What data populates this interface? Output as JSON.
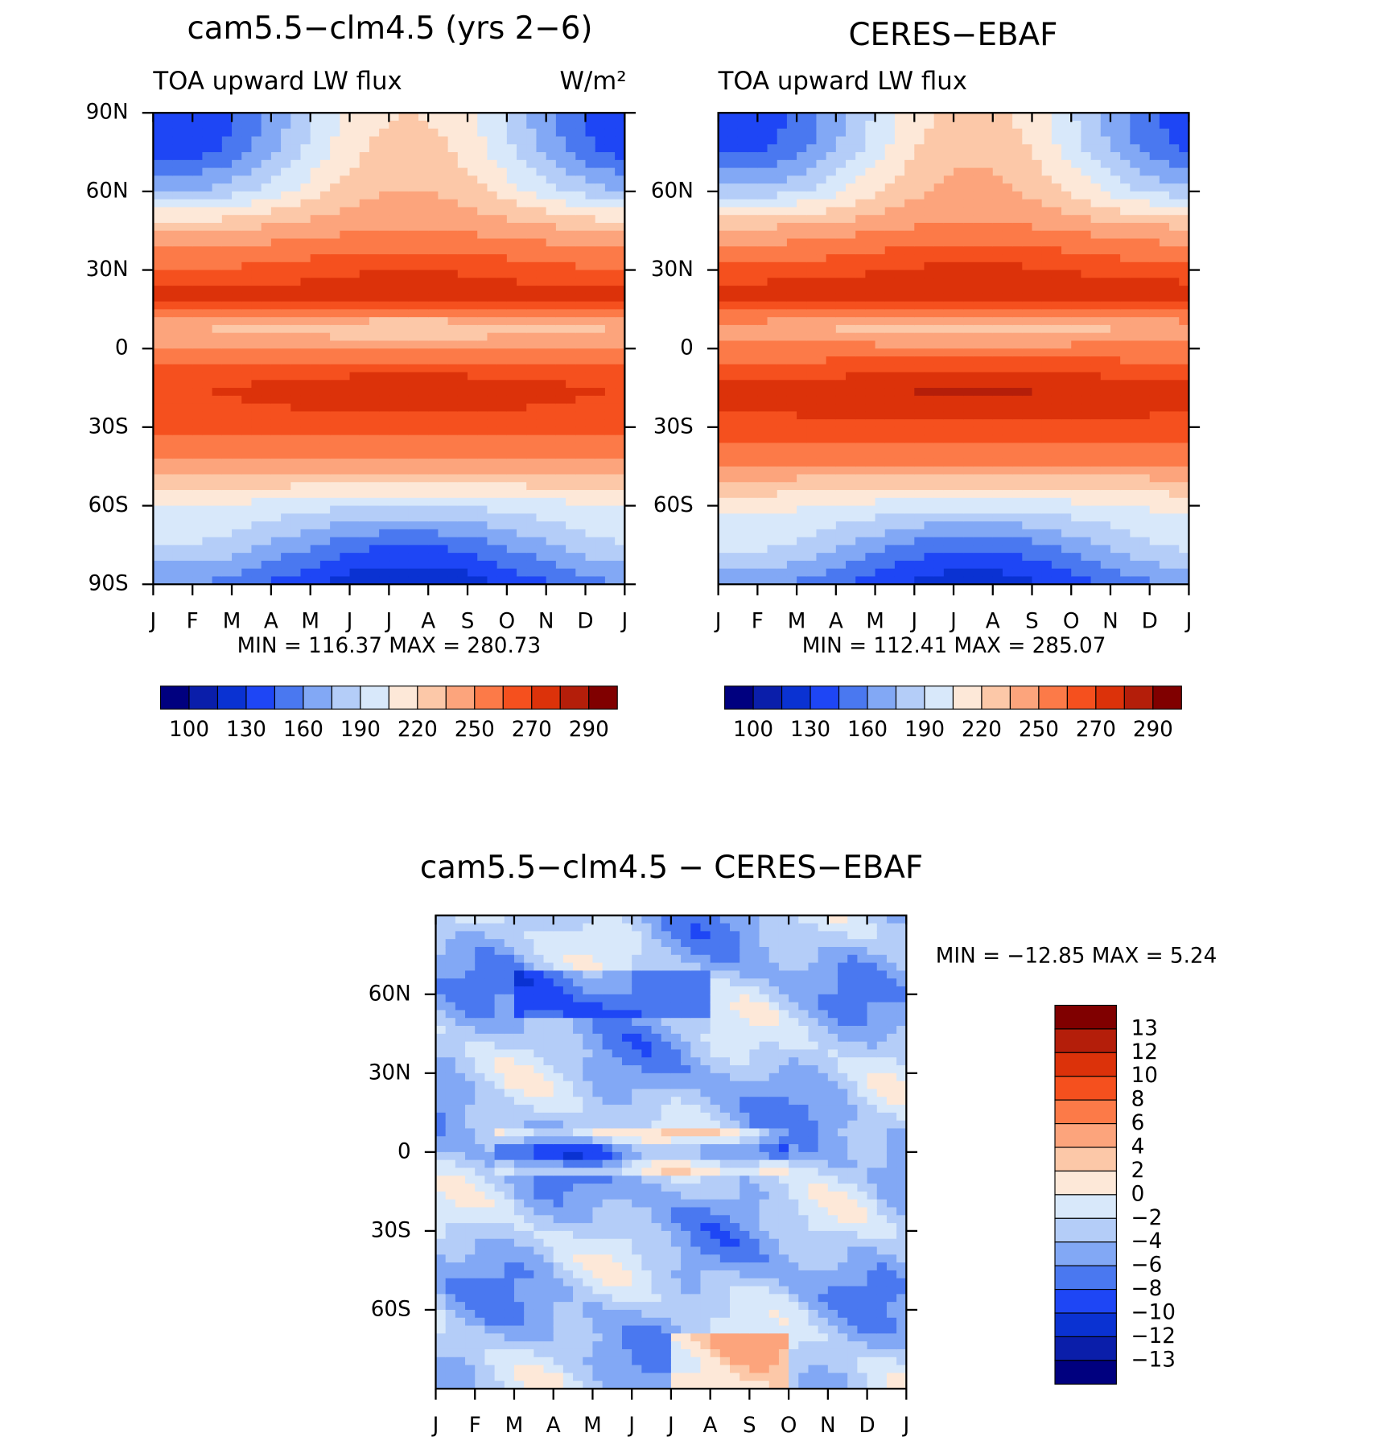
{
  "chart_data": [
    {
      "type": "contour",
      "title": "cam5.5−clm4.5 (yrs 2−6)",
      "subtitle": "TOA upward LW flux",
      "units": "W/m²",
      "categories": [
        "J",
        "F",
        "M",
        "A",
        "M",
        "J",
        "J",
        "A",
        "S",
        "O",
        "N",
        "D",
        "J"
      ],
      "ylim": [
        -90,
        90
      ],
      "yticks": [
        {
          "value": 90,
          "label": "90N"
        },
        {
          "value": 60,
          "label": "60N"
        },
        {
          "value": 30,
          "label": "30N"
        },
        0,
        {
          "value": -30,
          "label": "30S"
        },
        {
          "value": -60,
          "label": "60S"
        },
        {
          "value": -90,
          "label": "90S"
        }
      ],
      "stats": "MIN = 116.37 MAX = 280.73",
      "colorbar": {
        "orientation": "horizontal",
        "colors": [
          "#00007f",
          "#0a1eaa",
          "#0a32d2",
          "#1e46f5",
          "#4a78f0",
          "#82a8f5",
          "#b4cdf8",
          "#d8e8fa",
          "#fde8d8",
          "#fcc8a8",
          "#fca47c",
          "#fc7a48",
          "#f5501e",
          "#dc320a",
          "#b41e0a",
          "#800000"
        ],
        "labels": [
          100,
          130,
          160,
          190,
          220,
          250,
          270,
          290
        ]
      }
    },
    {
      "type": "contour",
      "title": "CERES−EBAF",
      "subtitle": "TOA upward LW flux",
      "categories": [
        "J",
        "F",
        "M",
        "A",
        "M",
        "J",
        "J",
        "A",
        "S",
        "O",
        "N",
        "D",
        "J"
      ],
      "ylim": [
        -90,
        90
      ],
      "yticks": [
        {
          "value": 60,
          "label": "60N"
        },
        {
          "value": 30,
          "label": "30N"
        },
        0,
        {
          "value": -30,
          "label": "30S"
        },
        {
          "value": -60,
          "label": "60S"
        }
      ],
      "stats": "MIN = 112.41 MAX = 285.07",
      "colorbar": {
        "orientation": "horizontal",
        "colors": [
          "#00007f",
          "#0a1eaa",
          "#0a32d2",
          "#1e46f5",
          "#4a78f0",
          "#82a8f5",
          "#b4cdf8",
          "#d8e8fa",
          "#fde8d8",
          "#fcc8a8",
          "#fca47c",
          "#fc7a48",
          "#f5501e",
          "#dc320a",
          "#b41e0a",
          "#800000"
        ],
        "labels": [
          100,
          130,
          160,
          190,
          220,
          250,
          270,
          290
        ]
      }
    },
    {
      "type": "contour-diff",
      "title": "cam5.5−clm4.5 − CERES−EBAF",
      "categories": [
        "J",
        "F",
        "M",
        "A",
        "M",
        "J",
        "J",
        "A",
        "S",
        "O",
        "N",
        "D",
        "J"
      ],
      "ylim": [
        -90,
        90
      ],
      "yticks": [
        {
          "value": 60,
          "label": "60N"
        },
        {
          "value": 30,
          "label": "30N"
        },
        0,
        {
          "value": -30,
          "label": "30S"
        },
        {
          "value": -60,
          "label": "60S"
        }
      ],
      "stats": "MIN = −12.85 MAX =    5.24",
      "colorbar": {
        "orientation": "vertical",
        "colors": [
          "#800000",
          "#b41e0a",
          "#dc320a",
          "#f5501e",
          "#fc7a48",
          "#fca47c",
          "#fcc8a8",
          "#fde8d8",
          "#d8e8fa",
          "#b4cdf8",
          "#82a8f5",
          "#4a78f0",
          "#1e46f5",
          "#0a32d2",
          "#0a1eaa",
          "#00007f"
        ],
        "labels": [
          13,
          12,
          10,
          8,
          6,
          4,
          2,
          0,
          {
            "value": -2,
            "label": "−2"
          },
          {
            "value": -4,
            "label": "−4"
          },
          {
            "value": -6,
            "label": "−6"
          },
          {
            "value": -8,
            "label": "−8"
          },
          {
            "value": -10,
            "label": "−10"
          },
          {
            "value": -12,
            "label": "−12"
          },
          {
            "value": -13,
            "label": "−13"
          }
        ]
      }
    }
  ]
}
